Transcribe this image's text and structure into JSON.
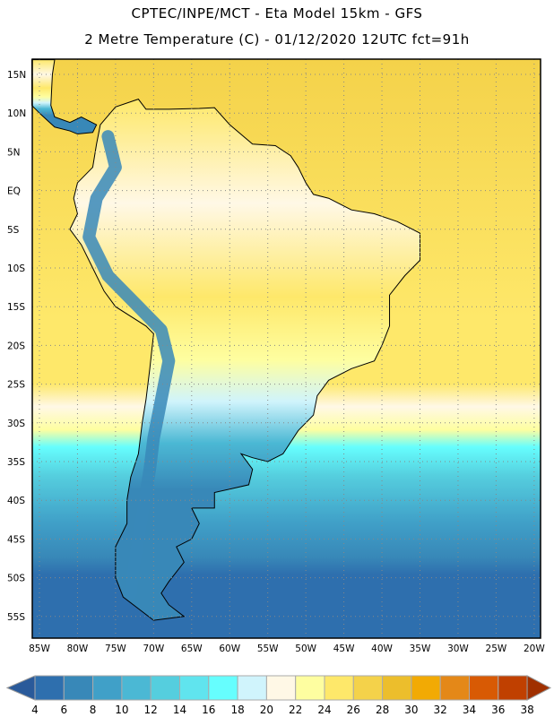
{
  "header": {
    "line1": "CPTEC/INPE/MCT -  Eta Model 15km - GFS",
    "line2": "2 Metre Temperature (C) - 01/12/2020 12UTC fct=91h"
  },
  "map": {
    "lat_labels": [
      "15N",
      "10N",
      "5N",
      "EQ",
      "5S",
      "10S",
      "15S",
      "20S",
      "25S",
      "30S",
      "35S",
      "40S",
      "45S",
      "50S",
      "55S"
    ],
    "lat_values": [
      15,
      10,
      5,
      0,
      -5,
      -10,
      -15,
      -20,
      -25,
      -30,
      -35,
      -40,
      -45,
      -50,
      -55
    ],
    "lon_labels": [
      "85W",
      "80W",
      "75W",
      "70W",
      "65W",
      "60W",
      "55W",
      "50W",
      "45W",
      "40W",
      "35W",
      "30W",
      "25W",
      "20W"
    ],
    "lon_values": [
      -85,
      -80,
      -75,
      -70,
      -65,
      -60,
      -55,
      -50,
      -45,
      -40,
      -35,
      -30,
      -25,
      -20
    ]
  },
  "colorbar": {
    "labels": [
      "4",
      "6",
      "8",
      "10",
      "12",
      "14",
      "16",
      "18",
      "20",
      "22",
      "24",
      "26",
      "28",
      "30",
      "32",
      "34",
      "36",
      "38"
    ],
    "colors": [
      "#2e6fae",
      "#3888b8",
      "#40a0c8",
      "#4bb8d4",
      "#55cede",
      "#60e4ee",
      "#66fefe",
      "#d0f4fc",
      "#fff8e6",
      "#fefea0",
      "#fee86a",
      "#f4d24a",
      "#ecbe2c",
      "#f2aa04",
      "#e48818",
      "#d85a04",
      "#c04000"
    ],
    "under_color": "#2a5a9a",
    "over_color": "#a03000"
  }
}
